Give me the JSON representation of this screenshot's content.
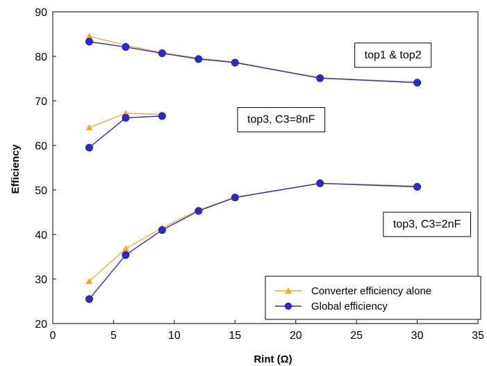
{
  "chart_data": {
    "type": "line",
    "xlabel": "Rint (Ω)",
    "ylabel": "Efficiency",
    "xlim": [
      0,
      35
    ],
    "ylim": [
      20,
      90
    ],
    "xticks": [
      0,
      5,
      10,
      15,
      20,
      25,
      30,
      35
    ],
    "yticks": [
      20,
      30,
      40,
      50,
      60,
      70,
      80,
      90
    ],
    "grid": false,
    "legend_position": "bottom-right",
    "colors": {
      "converter": "#f5a623",
      "global": "#2b2bcc"
    },
    "series": [
      {
        "name": "Converter efficiency alone",
        "group": "top1 & top2",
        "marker": "triangle",
        "x": [
          3,
          6,
          9,
          12,
          15,
          22,
          30
        ],
        "y": [
          84.5,
          82.5,
          80.8,
          79.6,
          78.7,
          75.2,
          74.2
        ]
      },
      {
        "name": "Global efficiency",
        "group": "top1 & top2",
        "marker": "circle",
        "x": [
          3,
          6,
          9,
          12,
          15,
          22,
          30
        ],
        "y": [
          83.3,
          82.1,
          80.7,
          79.4,
          78.6,
          75.1,
          74.1
        ]
      },
      {
        "name": "Converter efficiency alone",
        "group": "top3, C3=8nF",
        "marker": "triangle",
        "x": [
          3,
          6,
          9
        ],
        "y": [
          64.0,
          67.2,
          67.0
        ]
      },
      {
        "name": "Global efficiency",
        "group": "top3, C3=8nF",
        "marker": "circle",
        "x": [
          3,
          6,
          9
        ],
        "y": [
          59.5,
          66.2,
          66.6
        ]
      },
      {
        "name": "Converter efficiency alone",
        "group": "top3, C3=2nF",
        "marker": "triangle",
        "x": [
          3,
          6,
          9,
          12,
          15,
          22,
          30
        ],
        "y": [
          29.5,
          36.8,
          41.5,
          45.5,
          48.4,
          51.5,
          50.9
        ]
      },
      {
        "name": "Global efficiency",
        "group": "top3, C3=2nF",
        "marker": "circle",
        "x": [
          3,
          6,
          9,
          12,
          15,
          22,
          30
        ],
        "y": [
          25.5,
          35.4,
          41.0,
          45.3,
          48.3,
          51.5,
          50.7
        ]
      }
    ],
    "annotations": [
      {
        "text": "top1 & top2",
        "x": 28,
        "y": 80.5
      },
      {
        "text": "top3, C3=8nF",
        "x": 18.8,
        "y": 66.0
      },
      {
        "text": "top3, C3=2nF",
        "x": 30.8,
        "y": 42.5
      }
    ]
  }
}
